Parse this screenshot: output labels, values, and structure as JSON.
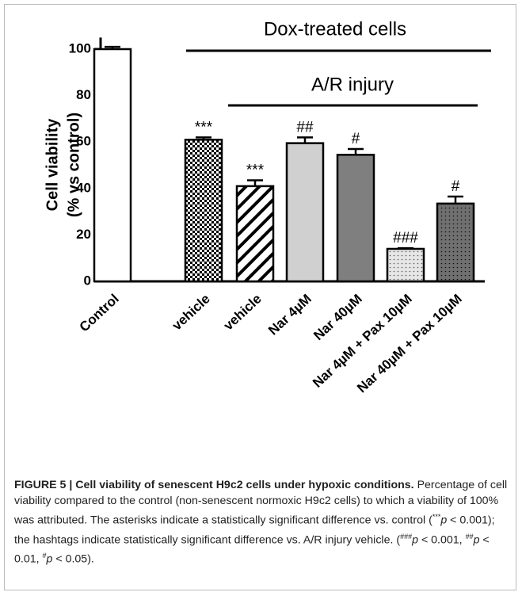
{
  "chart_data": {
    "type": "bar",
    "ylabel": [
      "Cell viability",
      "(% vs control)"
    ],
    "categories": [
      "Control",
      "vehicle",
      "vehicle",
      "Nar 4µM",
      "Nar 40µM",
      "Nar 4µM + Pax 10µM",
      "Nar 40µM + Pax 10µM"
    ],
    "values": [
      100,
      61,
      41,
      59.5,
      54.5,
      14,
      33.5
    ],
    "errors": [
      1,
      1,
      2.5,
      2.5,
      2.5,
      0.3,
      3
    ],
    "significance": [
      null,
      "***",
      "***",
      "##",
      "#",
      "###",
      "#"
    ],
    "colors": [
      "#ffffff",
      "#000000",
      "#000000",
      "#d0d0d0",
      "#7f7f7f",
      "#e6e6e6",
      "#707070"
    ],
    "patterns": [
      "solid",
      "checker",
      "diagonal",
      "solid",
      "solid",
      "dots",
      "dots"
    ],
    "ylim": [
      0,
      105
    ],
    "yticks": [
      0,
      20,
      40,
      60,
      80,
      100
    ],
    "brackets": [
      {
        "label": "Dox-treated cells"
      },
      {
        "label": "A/R injury"
      }
    ]
  },
  "caption": {
    "segments": [
      {
        "text": "FIGURE 5 | Cell viability of senescent H9c2 cells under hypoxic conditions.",
        "style": "bold"
      },
      {
        "text": " Percentage of cell viability compared to the control (non-senescent normoxic H9c2 cells) to which a viability of 100% was attributed. The asterisks indicate a statistically significant difference vs. control ("
      },
      {
        "text": "***",
        "style": "sup"
      },
      {
        "text": "p",
        "style": "italic"
      },
      {
        "text": " < 0.001); the hashtags indicate statistically significant difference vs. A/R injury vehicle. ("
      },
      {
        "text": "###",
        "style": "sup"
      },
      {
        "text": "p",
        "style": "italic"
      },
      {
        "text": " < 0.001, "
      },
      {
        "text": "##",
        "style": "sup"
      },
      {
        "text": "p",
        "style": "italic"
      },
      {
        "text": " < 0.01, "
      },
      {
        "text": "#",
        "style": "sup"
      },
      {
        "text": "p",
        "style": "italic"
      },
      {
        "text": " < 0.05)."
      }
    ]
  }
}
